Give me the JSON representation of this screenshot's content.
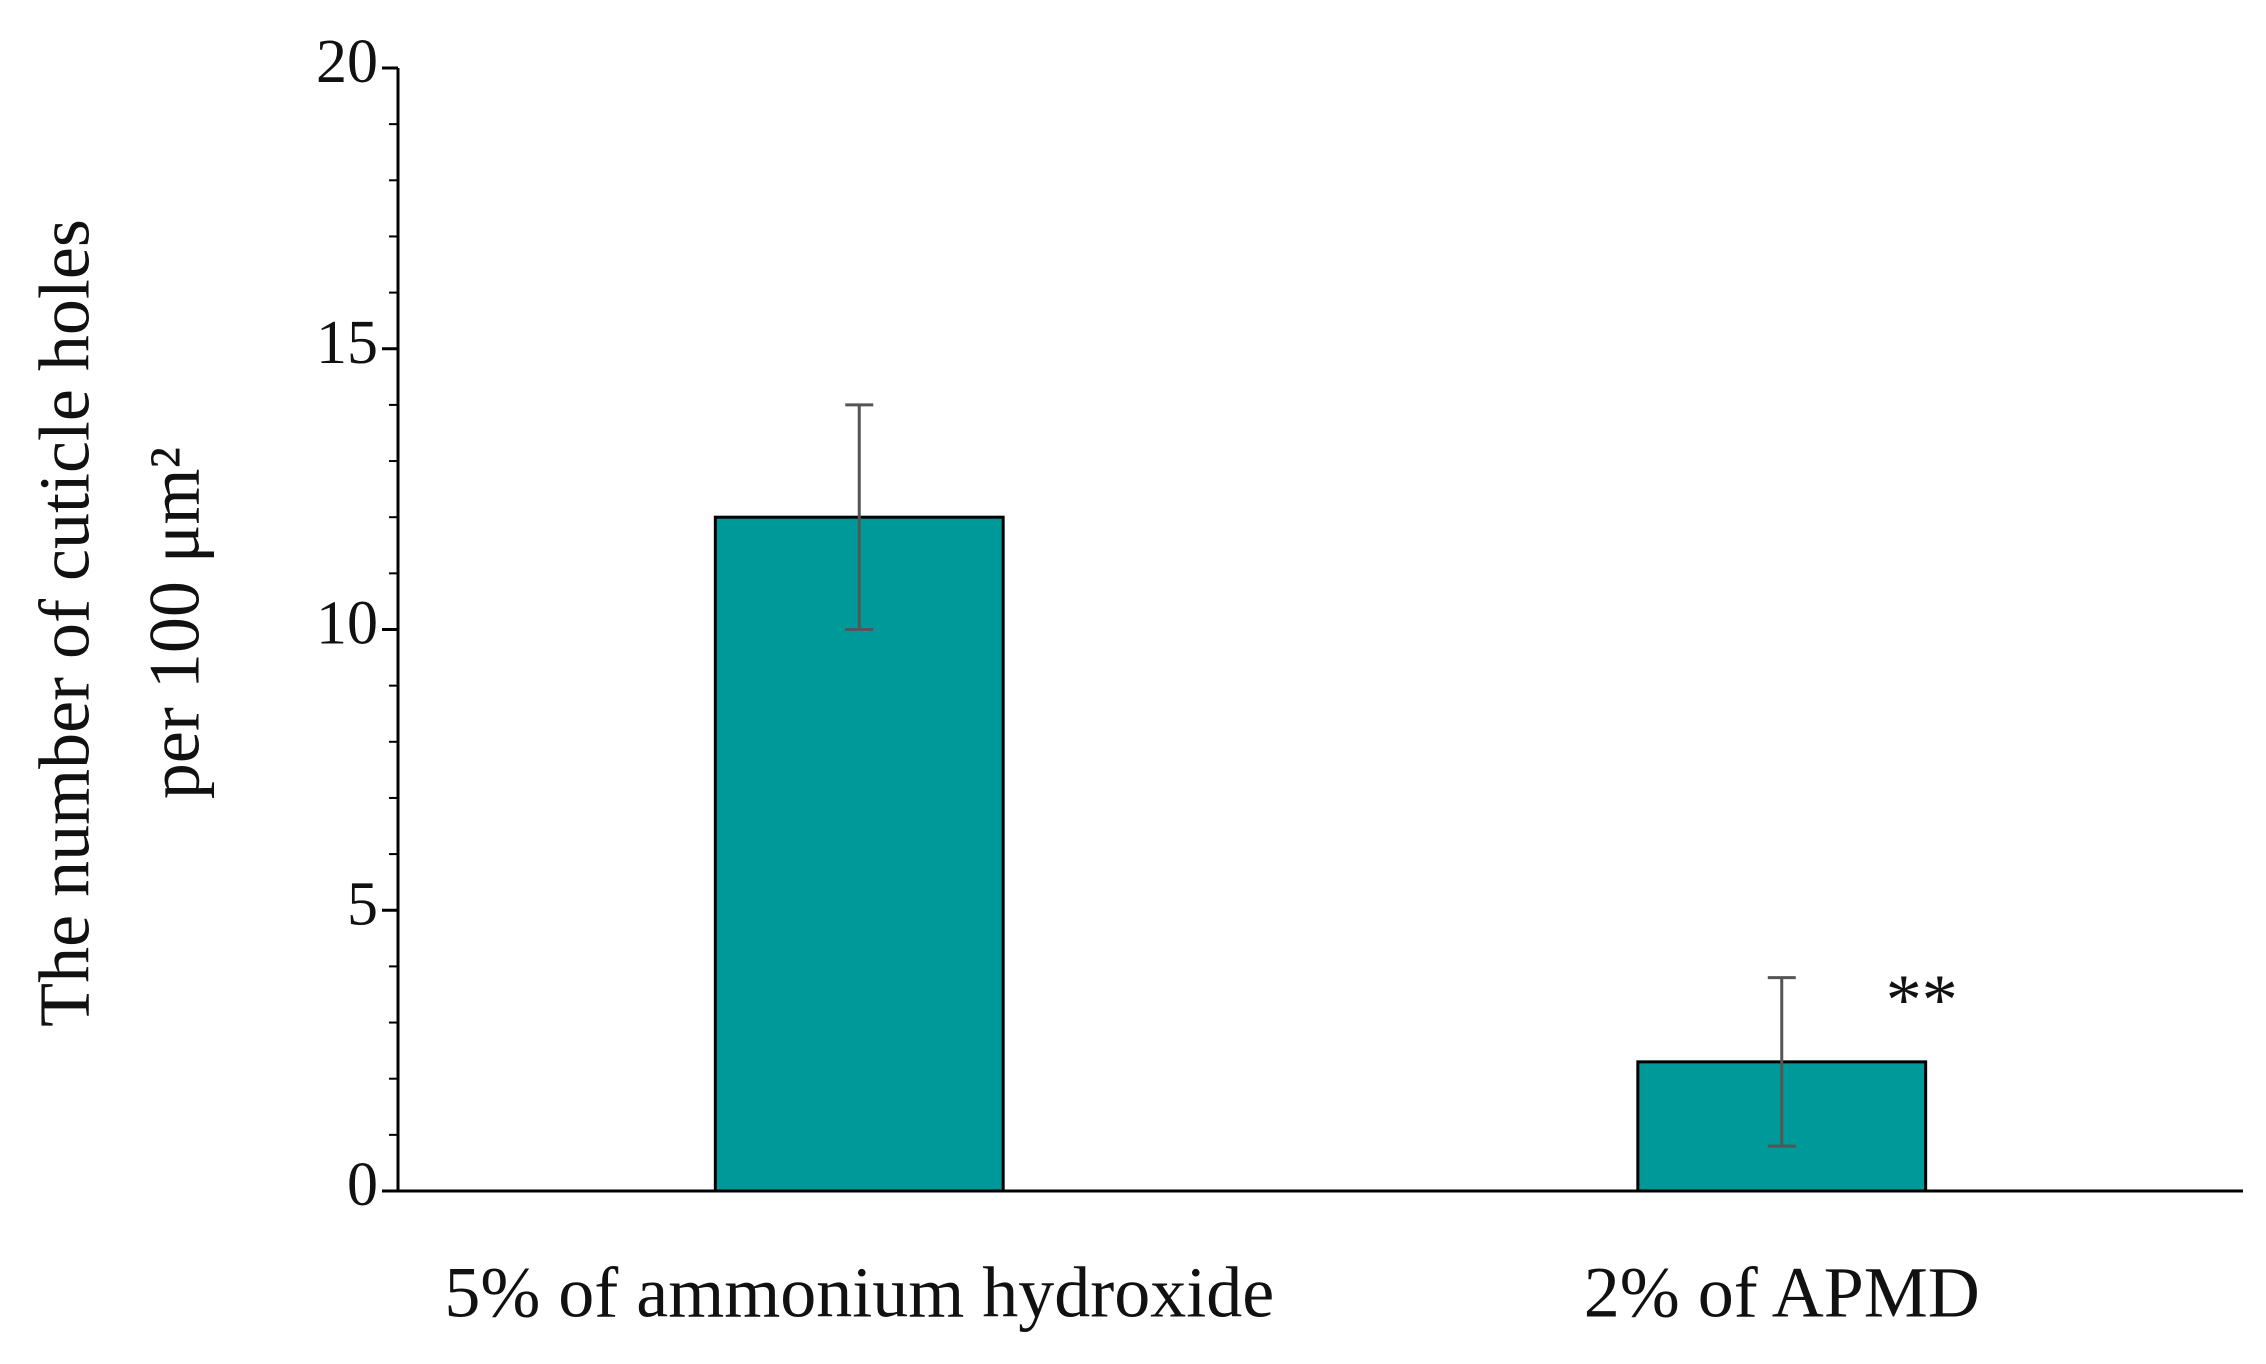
{
  "chart_data": {
    "type": "bar",
    "y_label": [
      "The number of cuticle holes",
      "per 100 μm²"
    ],
    "categories": [
      "5% of ammonium hydroxide",
      "2% of APMD"
    ],
    "values": [
      12,
      2.3
    ],
    "errors": [
      2,
      1.5
    ],
    "color": "#009999",
    "annotations": [
      {
        "text": "**",
        "category": 1
      }
    ],
    "ylim": [
      0,
      20
    ],
    "yticks": [
      0,
      5,
      10,
      15,
      20
    ],
    "minor_yticks": [
      1,
      2,
      3,
      4,
      6,
      7,
      8,
      9,
      11,
      12,
      13,
      14,
      16,
      17,
      18,
      19
    ],
    "grid": false
  }
}
